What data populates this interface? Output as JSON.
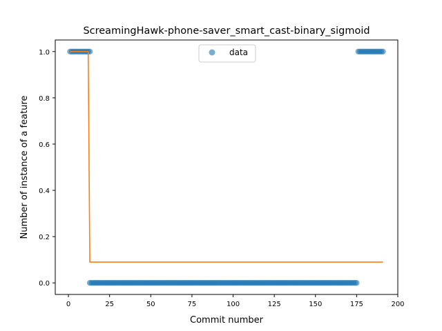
{
  "chart_data": {
    "type": "scatter",
    "title": "ScreamingHawk-phone-saver_smart_cast-binary_sigmoid",
    "xlabel": "Commit number",
    "ylabel": "Number of instance of a feature",
    "xlim": [
      -8,
      200
    ],
    "ylim": [
      -0.05,
      1.05
    ],
    "xticks": [
      0,
      25,
      50,
      75,
      100,
      125,
      150,
      175,
      200
    ],
    "yticks": [
      0.0,
      0.2,
      0.4,
      0.6,
      0.8,
      1.0
    ],
    "xtick_labels": [
      "0",
      "25",
      "50",
      "75",
      "100",
      "125",
      "150",
      "175",
      "200"
    ],
    "ytick_labels": [
      "0.0",
      "0.2",
      "0.4",
      "0.6",
      "0.8",
      "1.0"
    ],
    "legend": {
      "entries": [
        "data"
      ],
      "placement": "upper center"
    },
    "grid": false,
    "series": [
      {
        "name": "data",
        "kind": "scatter",
        "color": "#1f77b4",
        "opacity": 0.6,
        "segments": [
          {
            "x_start": 1,
            "x_end": 13,
            "y": 1
          },
          {
            "x_start": 13,
            "x_end": 175,
            "y": 0
          },
          {
            "x_start": 176,
            "x_end": 191,
            "y": 1
          }
        ]
      },
      {
        "kind": "line",
        "color": "#ff7f0e",
        "points": [
          [
            1,
            1.0
          ],
          [
            12,
            1.0
          ],
          [
            13,
            0.09
          ],
          [
            191,
            0.09
          ]
        ]
      }
    ]
  }
}
